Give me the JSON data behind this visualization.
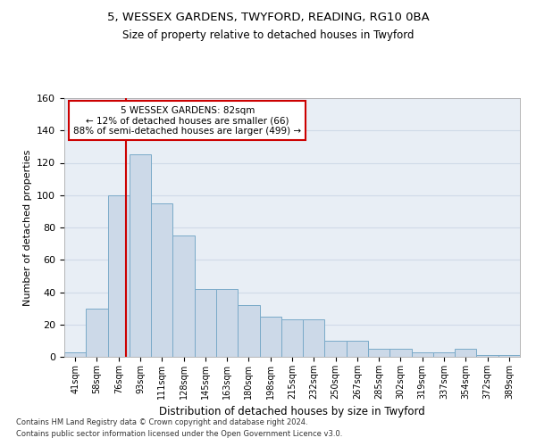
{
  "title1": "5, WESSEX GARDENS, TWYFORD, READING, RG10 0BA",
  "title2": "Size of property relative to detached houses in Twyford",
  "xlabel": "Distribution of detached houses by size in Twyford",
  "ylabel": "Number of detached properties",
  "categories": [
    "41sqm",
    "58sqm",
    "76sqm",
    "93sqm",
    "111sqm",
    "128sqm",
    "145sqm",
    "163sqm",
    "180sqm",
    "198sqm",
    "215sqm",
    "232sqm",
    "250sqm",
    "267sqm",
    "285sqm",
    "302sqm",
    "319sqm",
    "337sqm",
    "354sqm",
    "372sqm",
    "389sqm"
  ],
  "values": [
    3,
    30,
    100,
    125,
    95,
    75,
    42,
    42,
    32,
    25,
    23,
    23,
    10,
    10,
    5,
    5,
    3,
    3,
    5,
    1,
    1
  ],
  "bar_color": "#ccd9e8",
  "bar_edge_color": "#7aaac8",
  "vline_x": 2.35,
  "vline_color": "#cc0000",
  "annotation_text": "5 WESSEX GARDENS: 82sqm\n← 12% of detached houses are smaller (66)\n88% of semi-detached houses are larger (499) →",
  "annotation_box_color": "#ffffff",
  "annotation_box_edge": "#cc0000",
  "ylim": [
    0,
    160
  ],
  "yticks": [
    0,
    20,
    40,
    60,
    80,
    100,
    120,
    140,
    160
  ],
  "grid_color": "#d0dae8",
  "background_color": "#e8eef5",
  "footer1": "Contains HM Land Registry data © Crown copyright and database right 2024.",
  "footer2": "Contains public sector information licensed under the Open Government Licence v3.0."
}
